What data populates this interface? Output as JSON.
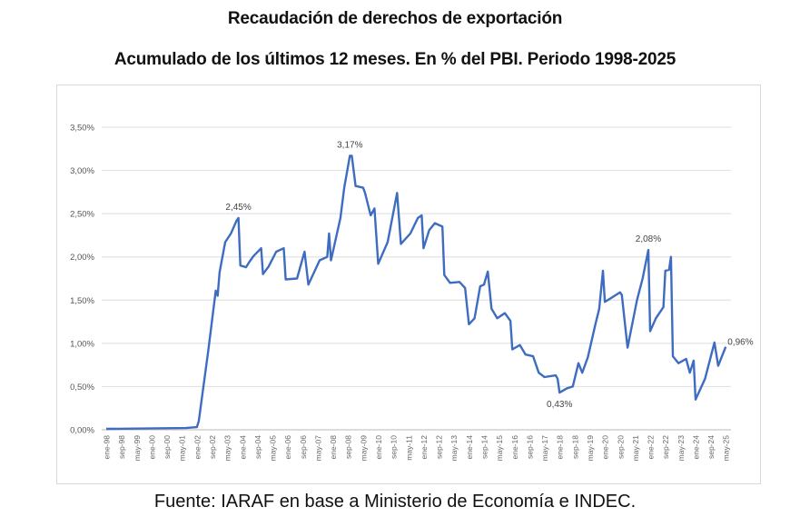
{
  "title": "Recaudación de derechos de exportación",
  "subtitle": "Acumulado de los últimos 12 meses. En % del PBI. Periodo 1998-2025",
  "source": "Fuente: IARAF en base a Ministerio de Economía e INDEC.",
  "chart_data": {
    "type": "line",
    "title": "Recaudación de derechos de exportación",
    "subtitle": "Acumulado de los últimos 12 meses. En % del PBI. Periodo 1998-2025",
    "xlabel": "",
    "ylabel": "",
    "ylim": [
      0,
      3.5
    ],
    "y_ticks": [
      "0,00%",
      "0,50%",
      "1,00%",
      "1,50%",
      "2,00%",
      "2,50%",
      "3,00%",
      "3,50%"
    ],
    "x_ticks": [
      "ene-98",
      "sep-98",
      "may-99",
      "ene-00",
      "sep-00",
      "may-01",
      "ene-02",
      "sep-02",
      "may-03",
      "ene-04",
      "sep-04",
      "may-05",
      "ene-06",
      "sep-06",
      "may-07",
      "ene-08",
      "sep-08",
      "may-09",
      "ene-10",
      "sep-10",
      "may-11",
      "ene-12",
      "sep-12",
      "may-13",
      "ene-14",
      "sep-14",
      "may-15",
      "ene-16",
      "sep-16",
      "may-17",
      "ene-18",
      "sep-18",
      "may-19",
      "ene-20",
      "sep-20",
      "may-21",
      "ene-22",
      "sep-22",
      "may-23",
      "ene-24",
      "sep-24",
      "may-25"
    ],
    "grid": true,
    "legend": "none",
    "line_color": "#3e6cc0",
    "series": [
      {
        "x": [
          "1998-01",
          "2001-07",
          "2002-01",
          "2002-02",
          "2002-07",
          "2002-11",
          "2002-12",
          "2003-01",
          "2003-04",
          "2003-07",
          "2003-10",
          "2003-11",
          "2003-12",
          "2004-03",
          "2004-05",
          "2004-07",
          "2004-11",
          "2004-12",
          "2005-03",
          "2005-07",
          "2005-11",
          "2005-12",
          "2006-06",
          "2006-10",
          "2006-12",
          "2007-06",
          "2007-10",
          "2007-11",
          "2007-12",
          "2008-05",
          "2008-07",
          "2008-10",
          "2008-11",
          "2009-01",
          "2009-05",
          "2009-06",
          "2009-09",
          "2009-11",
          "2010-01",
          "2010-06",
          "2010-11",
          "2011-01",
          "2011-06",
          "2011-10",
          "2011-12",
          "2012-01",
          "2012-04",
          "2012-07",
          "2012-11",
          "2012-12",
          "2013-03",
          "2013-08",
          "2013-11",
          "2014-01",
          "2014-04",
          "2014-07",
          "2014-09",
          "2014-11",
          "2015-01",
          "2015-04",
          "2015-08",
          "2015-11",
          "2015-12",
          "2016-04",
          "2016-07",
          "2016-11",
          "2017-02",
          "2017-05",
          "2017-11",
          "2017-12",
          "2018-01",
          "2018-05",
          "2018-08",
          "2018-11",
          "2019-01",
          "2019-04",
          "2019-08",
          "2019-10",
          "2019-12",
          "2020-01",
          "2020-04",
          "2020-09",
          "2020-10",
          "2021-01",
          "2021-06",
          "2021-09",
          "2021-12",
          "2022-01",
          "2022-04",
          "2022-08",
          "2022-09",
          "2022-11",
          "2022-12",
          "2023-01",
          "2023-04",
          "2023-08",
          "2023-10",
          "2023-12",
          "2024-01",
          "2024-06",
          "2024-11",
          "2025-01",
          "2025-05"
        ],
        "values": [
          0.01,
          0.02,
          0.03,
          0.1,
          0.91,
          1.61,
          1.55,
          1.82,
          2.17,
          2.27,
          2.42,
          2.45,
          1.9,
          1.88,
          1.95,
          2.01,
          2.1,
          1.8,
          1.89,
          2.06,
          2.1,
          1.74,
          1.75,
          2.06,
          1.68,
          1.96,
          2.0,
          2.27,
          1.96,
          2.45,
          2.8,
          3.17,
          3.17,
          2.82,
          2.8,
          2.74,
          2.48,
          2.56,
          1.92,
          2.17,
          2.74,
          2.15,
          2.27,
          2.45,
          2.48,
          2.1,
          2.31,
          2.39,
          2.35,
          1.79,
          1.7,
          1.71,
          1.64,
          1.22,
          1.29,
          1.66,
          1.68,
          1.83,
          1.4,
          1.29,
          1.35,
          1.26,
          0.93,
          0.98,
          0.87,
          0.85,
          0.66,
          0.61,
          0.63,
          0.59,
          0.43,
          0.48,
          0.5,
          0.77,
          0.66,
          0.84,
          1.22,
          1.4,
          1.84,
          1.48,
          1.52,
          1.59,
          1.56,
          0.95,
          1.5,
          1.75,
          2.08,
          1.14,
          1.29,
          1.42,
          1.84,
          1.85,
          2.0,
          0.85,
          0.77,
          0.82,
          0.66,
          0.8,
          0.35,
          0.59,
          1.01,
          0.74,
          0.96
        ]
      }
    ],
    "annotations": [
      {
        "x": "2003-11",
        "value": 2.45,
        "label": "2,45%",
        "position": "above"
      },
      {
        "x": "2008-10",
        "value": 3.17,
        "label": "3,17%",
        "position": "above"
      },
      {
        "x": "2018-01",
        "value": 0.43,
        "label": "0,43%",
        "position": "below"
      },
      {
        "x": "2021-12",
        "value": 2.08,
        "label": "2,08%",
        "position": "above"
      },
      {
        "x": "2025-05",
        "value": 0.96,
        "label": "0,96%",
        "position": "right"
      }
    ]
  }
}
